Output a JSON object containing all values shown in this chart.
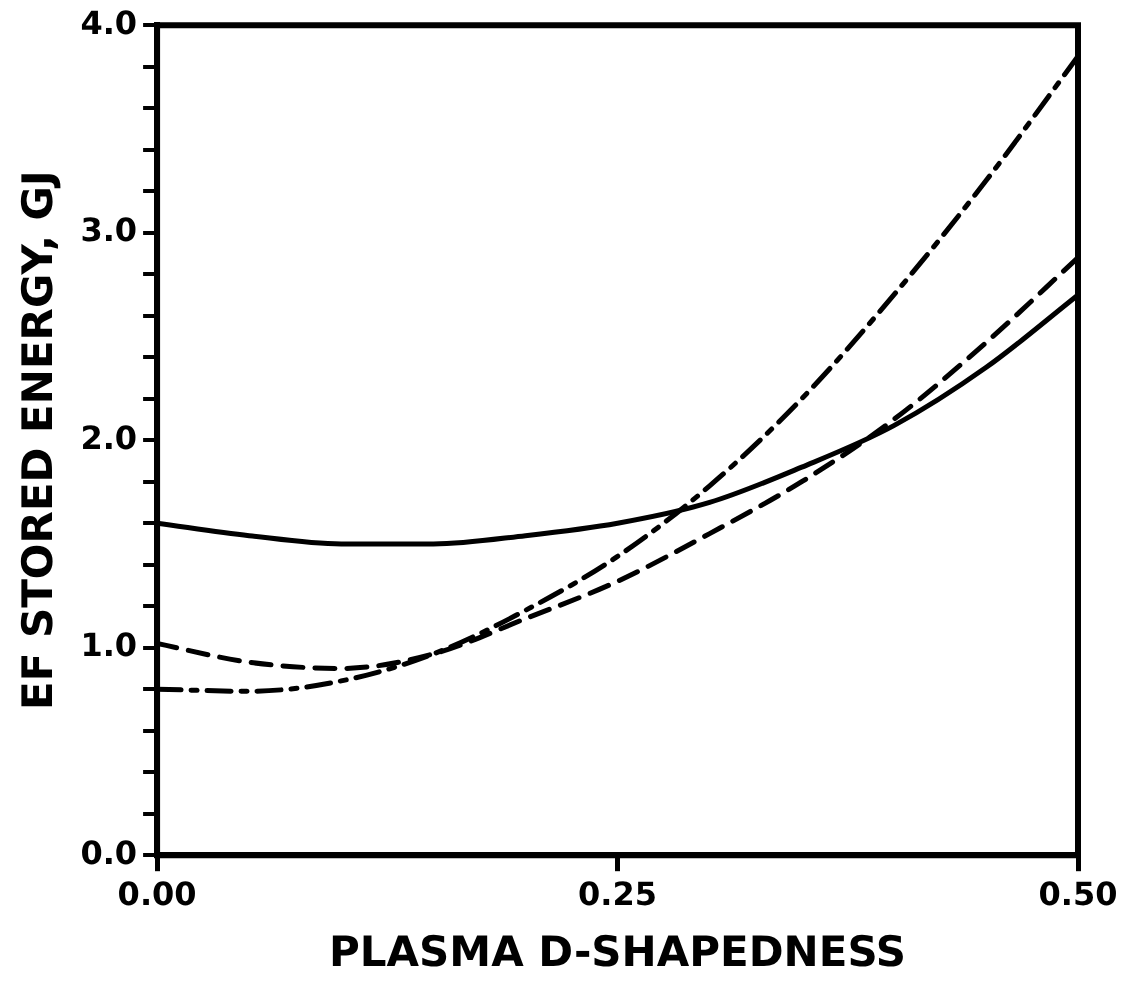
{
  "chart_data": {
    "type": "line",
    "xlabel": "PLASMA D-SHAPEDNESS",
    "ylabel": "EF STORED ENERGY, GJ",
    "x": [
      0,
      0.05,
      0.1,
      0.15,
      0.2,
      0.25,
      0.3,
      0.35,
      0.4,
      0.45,
      0.5
    ],
    "series": [
      {
        "color": "#000000",
        "line_style": "solid",
        "values": [
          1.6,
          1.54,
          1.5,
          1.5,
          1.54,
          1.6,
          1.7,
          1.87,
          2.07,
          2.35,
          2.7
        ]
      },
      {
        "color": "#000000",
        "line_style": "dashed",
        "values": [
          1.02,
          0.93,
          0.9,
          0.97,
          1.14,
          1.32,
          1.55,
          1.8,
          2.1,
          2.47,
          2.88
        ]
      },
      {
        "color": "#000000",
        "line_style": "dashdot",
        "values": [
          0.8,
          0.79,
          0.84,
          0.97,
          1.18,
          1.44,
          1.78,
          2.2,
          2.7,
          3.25,
          3.85
        ]
      }
    ],
    "marker": "none",
    "legend": false,
    "xlim": [
      0,
      0.5
    ],
    "xticks": [
      {
        "value": 0,
        "label": "0.00"
      },
      {
        "value": 0.25,
        "label": "0.25"
      },
      {
        "value": 0.5,
        "label": "0.50"
      }
    ],
    "ylim": [
      0,
      4
    ],
    "yticks": [
      {
        "value": 0,
        "label": "0.0"
      },
      {
        "value": 0.2,
        "label": null
      },
      {
        "value": 0.4,
        "label": null
      },
      {
        "value": 0.6,
        "label": null
      },
      {
        "value": 0.8,
        "label": null
      },
      {
        "value": 1,
        "label": "1.0"
      },
      {
        "value": 1.2,
        "label": null
      },
      {
        "value": 1.4,
        "label": null
      },
      {
        "value": 1.6,
        "label": null
      },
      {
        "value": 1.8,
        "label": null
      },
      {
        "value": 2,
        "label": "2.0"
      },
      {
        "value": 2.2,
        "label": null
      },
      {
        "value": 2.4,
        "label": null
      },
      {
        "value": 2.6,
        "label": null
      },
      {
        "value": 2.8,
        "label": null
      },
      {
        "value": 3,
        "label": "3.0"
      },
      {
        "value": 3.2,
        "label": null
      },
      {
        "value": 3.4,
        "label": null
      },
      {
        "value": 3.6,
        "label": null
      },
      {
        "value": 3.8,
        "label": null
      },
      {
        "value": 4,
        "label": "4.0"
      }
    ]
  }
}
